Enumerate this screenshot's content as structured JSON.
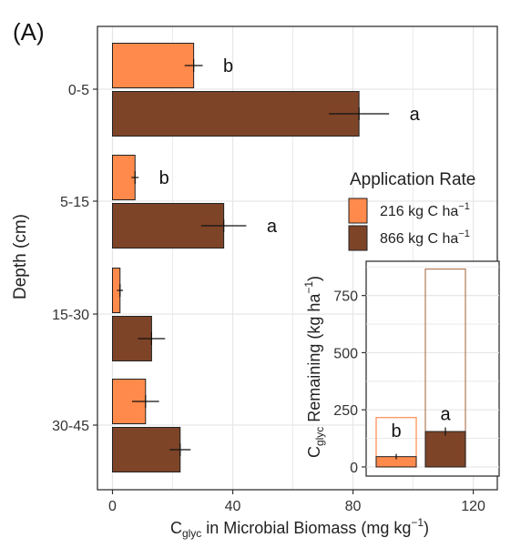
{
  "panel_label": "(A)",
  "colors": {
    "series_216": "#FF8A4C",
    "series_866": "#7E4428",
    "outline_866": "#B07A55",
    "bar_border": "#222222",
    "grid": "#E6E6E6",
    "frame": "#333333"
  },
  "legend": {
    "title": "Application Rate",
    "items": [
      {
        "label_prefix": "216 kg C ha",
        "sup": "−1"
      },
      {
        "label_prefix": "866 kg C ha",
        "sup": "−1"
      }
    ]
  },
  "chart_data": [
    {
      "type": "bar",
      "orientation": "horizontal",
      "categories": [
        "0-5",
        "5-15",
        "15-30",
        "30-45"
      ],
      "series": [
        {
          "name": "216 kg C ha⁻¹",
          "values": [
            27,
            7.5,
            2.5,
            11
          ],
          "error": [
            3,
            1.2,
            1.0,
            4.5
          ],
          "letters": [
            "b",
            "b",
            "",
            ""
          ]
        },
        {
          "name": "866 kg C ha⁻¹",
          "values": [
            82,
            37,
            13,
            22.5
          ],
          "error": [
            10,
            7.5,
            4.5,
            3.5
          ],
          "letters": [
            "a",
            "a",
            "",
            ""
          ]
        }
      ],
      "xlabel": {
        "pre": "C",
        "sub": "glyc",
        "post": " in Microbial Biomass (mg kg",
        "sup": "−1",
        "close": ")"
      },
      "ylabel": "Depth (cm)",
      "xlim": [
        -5,
        128
      ],
      "xticks": [
        "0",
        "40",
        "80",
        "120"
      ],
      "grid": true,
      "legend_position": "right"
    },
    {
      "type": "bar",
      "inset": true,
      "categories": [
        "216 kg C ha⁻¹",
        "866 kg C ha⁻¹"
      ],
      "applied": [
        216,
        866
      ],
      "remaining": [
        45,
        155
      ],
      "error": [
        12,
        18
      ],
      "letters": [
        "b",
        "a"
      ],
      "ylabel": {
        "pre": "C",
        "sub": "glyc",
        "post": " Remaining (kg ha",
        "sup": "−1",
        "close": ")"
      },
      "ylim": [
        -40,
        900
      ],
      "yticks": [
        "0",
        "250",
        "500",
        "750"
      ],
      "grid": true
    }
  ]
}
